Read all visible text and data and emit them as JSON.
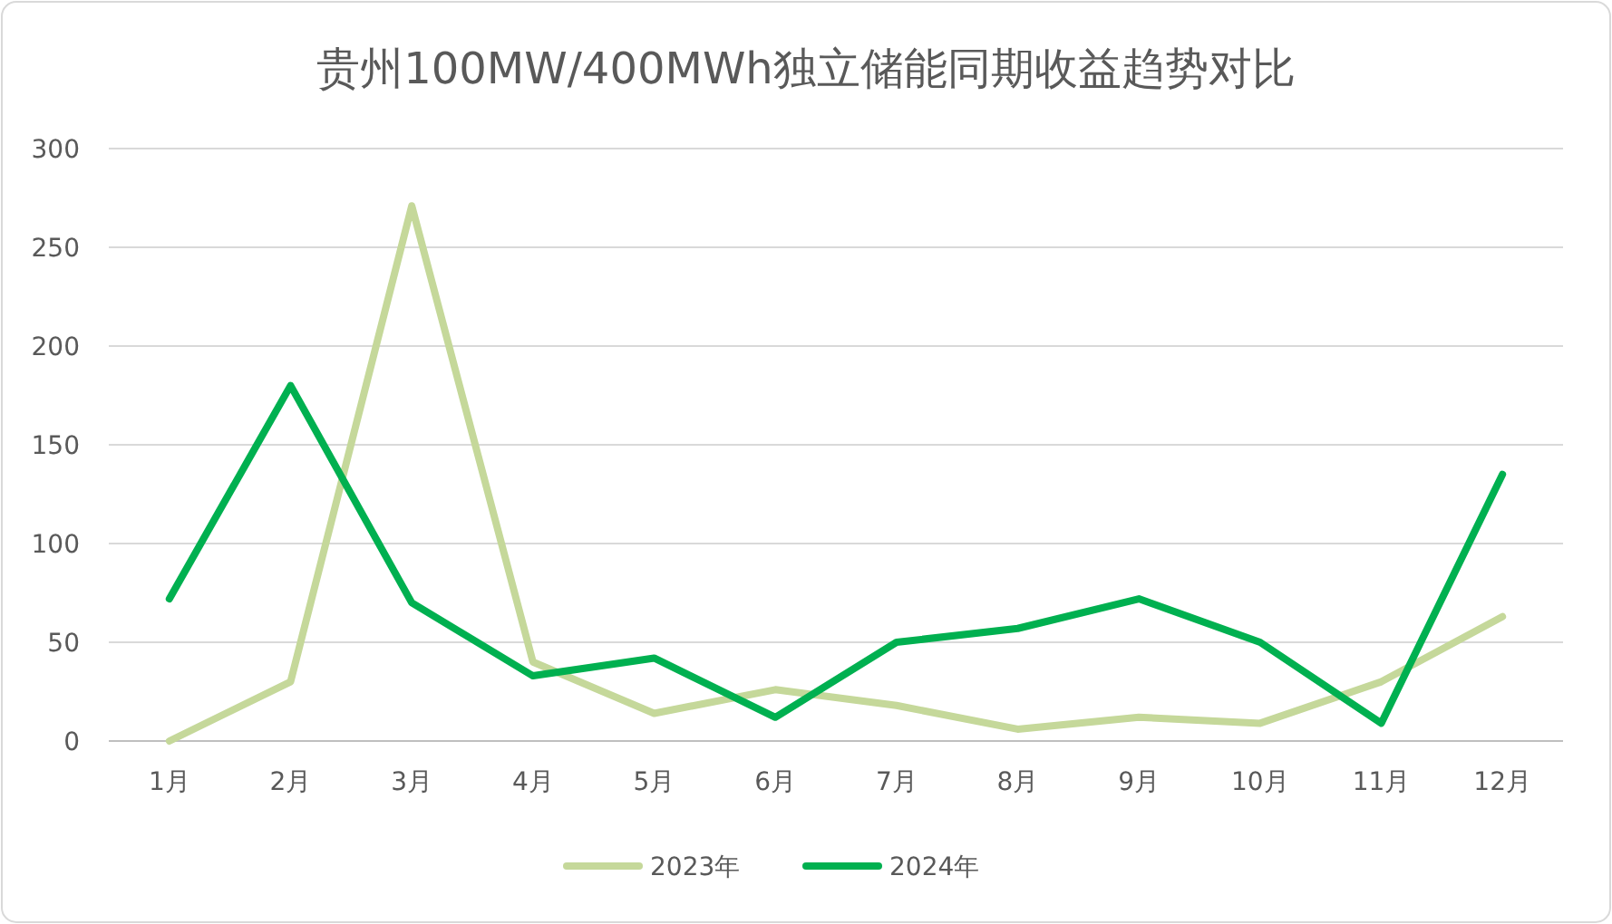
{
  "chart_data": {
    "type": "line",
    "title": "贵州100MW/400MWh独立储能同期收益趋势对比",
    "categories": [
      "1月",
      "2月",
      "3月",
      "4月",
      "5月",
      "6月",
      "7月",
      "8月",
      "9月",
      "10月",
      "11月",
      "12月"
    ],
    "series": [
      {
        "name": "2023年",
        "color": "#c5d89a",
        "values": [
          0,
          30,
          271,
          40,
          14,
          26,
          18,
          6,
          12,
          9,
          30,
          63
        ]
      },
      {
        "name": "2024年",
        "color": "#00b050",
        "values": [
          72,
          180,
          70,
          33,
          42,
          12,
          50,
          57,
          72,
          50,
          9,
          135
        ]
      }
    ],
    "ylim": [
      0,
      300
    ],
    "yticks": [
      0,
      50,
      100,
      150,
      200,
      250,
      300
    ],
    "grid": "y",
    "legend": "bottom",
    "marker": "none",
    "line_style": "solid"
  }
}
